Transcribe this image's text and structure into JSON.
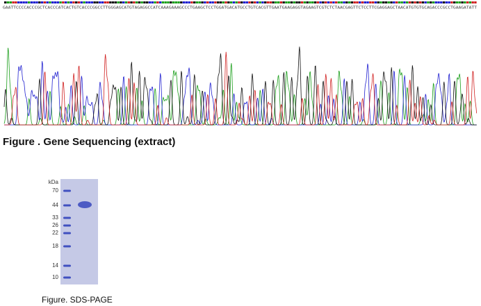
{
  "sequencing": {
    "sequence": "GAATTCCCCACCCGCTCACCCATCACTGTCACCCGGCCTTGGGAGCATGTAGAGGCCATCAAAGAAAGCCCTGAAGCTCCTGGATGACATGCCTGTCACGTTGAATGAAGAGGTAGAAGTCGTCTCTAACGAGTTCTCCTTCGAGGAGCTAACATGTGTGCAGACCCGCCTGAAGATATT",
    "caption": "Figure . Gene Sequencing (extract)"
  },
  "gel": {
    "unit": "kDa",
    "markers": [
      "70",
      "44",
      "33",
      "26",
      "22",
      "18",
      "14",
      "10"
    ],
    "caption": "Figure. SDS-PAGE"
  }
}
